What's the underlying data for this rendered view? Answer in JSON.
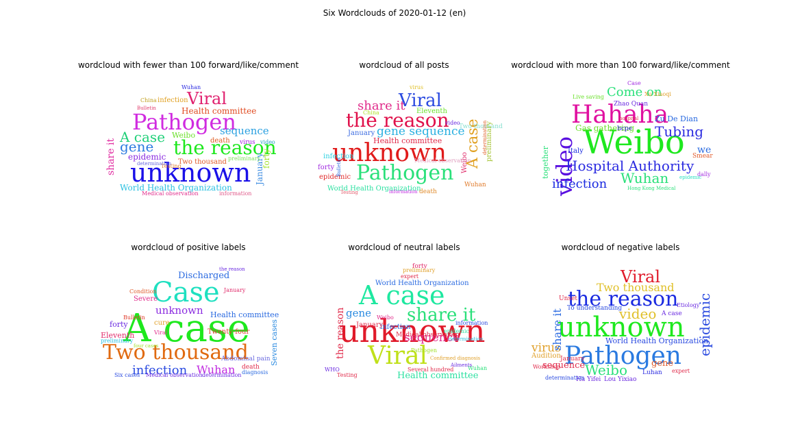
{
  "title": "Six Wordclouds of 2020-01-12 (en)",
  "chart_data": [
    {
      "type": "wordcloud",
      "title": "wordcloud with fewer than 100 forward/like/comment",
      "words": [
        {
          "text": "unknown",
          "color": "#1a10e8"
        },
        {
          "text": "Pathogen",
          "color": "#d02be0"
        },
        {
          "text": "the reason",
          "color": "#1ee81e"
        },
        {
          "text": "Viral",
          "color": "#e0206e"
        },
        {
          "text": "A case",
          "color": "#22d07a"
        },
        {
          "text": "gene",
          "color": "#2a7ae0"
        },
        {
          "text": "sequence",
          "color": "#2aa0e0"
        },
        {
          "text": "Health committee",
          "color": "#e04a20"
        },
        {
          "text": "epidemic",
          "color": "#8a2ae0"
        },
        {
          "text": "Weibo",
          "color": "#6ae02a"
        },
        {
          "text": "infection",
          "color": "#e0a020"
        },
        {
          "text": "Two thousand",
          "color": "#e05a2a"
        },
        {
          "text": "World Health Organization",
          "color": "#2ac0e0"
        },
        {
          "text": "share it",
          "color": "#e02aa0"
        },
        {
          "text": "January",
          "color": "#3a8ae0"
        },
        {
          "text": "forty",
          "color": "#a0e02a"
        },
        {
          "text": "death",
          "color": "#e05a20"
        },
        {
          "text": "Wuhan",
          "color": "#2a2ae0"
        },
        {
          "text": "China",
          "color": "#c0a020"
        },
        {
          "text": "Bulletin",
          "color": "#e03a6a"
        },
        {
          "text": "Testing",
          "color": "#e07a2a"
        },
        {
          "text": "Medical observation",
          "color": "#e02a8a"
        },
        {
          "text": "information",
          "color": "#e05a8a"
        },
        {
          "text": "preliminary",
          "color": "#7ae05a"
        },
        {
          "text": "virus",
          "color": "#a020e0"
        },
        {
          "text": "video",
          "color": "#20a0c0"
        },
        {
          "text": "determination",
          "color": "#6a6ae0"
        }
      ]
    },
    {
      "type": "wordcloud",
      "title": "wordcloud of all posts",
      "words": [
        {
          "text": "unknown",
          "color": "#e01a1a"
        },
        {
          "text": "the reason",
          "color": "#e0104a"
        },
        {
          "text": "Pathogen",
          "color": "#2ae07a"
        },
        {
          "text": "Viral",
          "color": "#2a4ae0"
        },
        {
          "text": "gene sequence",
          "color": "#2ab0e0"
        },
        {
          "text": "share it",
          "color": "#e02a8a"
        },
        {
          "text": "A case",
          "color": "#e0a020"
        },
        {
          "text": "Health committee",
          "color": "#e02a4a"
        },
        {
          "text": "World Health Organization",
          "color": "#2ae0a0"
        },
        {
          "text": "Eleventh",
          "color": "#6ae02a"
        },
        {
          "text": "January",
          "color": "#3a6ae0"
        },
        {
          "text": "infection",
          "color": "#2ad0e0"
        },
        {
          "text": "forty",
          "color": "#a02ae0"
        },
        {
          "text": "epidemic",
          "color": "#e02a2a"
        },
        {
          "text": "Weibo",
          "color": "#e02a6a"
        },
        {
          "text": "Wuhan",
          "color": "#e07a2a"
        },
        {
          "text": "death",
          "color": "#e08a2a"
        },
        {
          "text": "Two thousand",
          "color": "#8ae0d0"
        },
        {
          "text": "China",
          "color": "#b0e02a"
        },
        {
          "text": "video",
          "color": "#6a2ae0"
        },
        {
          "text": "virus",
          "color": "#e0c02a"
        },
        {
          "text": "Medical observation",
          "color": "#e0a0c0"
        },
        {
          "text": "preliminary",
          "color": "#a0c02a"
        },
        {
          "text": "Testing",
          "color": "#e05a6a"
        },
        {
          "text": "information",
          "color": "#c02ae0"
        },
        {
          "text": "Bulletin",
          "color": "#2a6ae0"
        },
        {
          "text": "determination",
          "color": "#e0602a"
        }
      ]
    },
    {
      "type": "wordcloud",
      "title": "wordcloud with more than 100 forward/like/comment",
      "words": [
        {
          "text": "Weibo",
          "color": "#1ee81e"
        },
        {
          "text": "Hahaha",
          "color": "#e010a0"
        },
        {
          "text": "video",
          "color": "#5a10e0"
        },
        {
          "text": "Hospital Authority",
          "color": "#2a2ae0"
        },
        {
          "text": "Come on",
          "color": "#2ae07a"
        },
        {
          "text": "Tubing",
          "color": "#2a2ae0"
        },
        {
          "text": "Wuhan",
          "color": "#2ae07a"
        },
        {
          "text": "infection",
          "color": "#1a2ae0"
        },
        {
          "text": "Gas gathering",
          "color": "#6ae02a"
        },
        {
          "text": "Zu De Dian",
          "color": "#2a6ae0"
        },
        {
          "text": "we",
          "color": "#2a6ae0"
        },
        {
          "text": "Italy",
          "color": "#1a2ae0"
        },
        {
          "text": "hcpe",
          "color": "#3a2ae0"
        },
        {
          "text": "Zhao Quan",
          "color": "#6a2ae0"
        },
        {
          "text": "together",
          "color": "#2ae07a"
        },
        {
          "text": "Smear",
          "color": "#e05a2a"
        },
        {
          "text": "Case",
          "color": "#a02ae0"
        },
        {
          "text": "Xu Xiaoqi",
          "color": "#e0a02a"
        },
        {
          "text": "hospital",
          "color": "#e02a4a"
        },
        {
          "text": "dally",
          "color": "#a02ae0"
        },
        {
          "text": "Live saving",
          "color": "#6ae02a"
        },
        {
          "text": "epidemic",
          "color": "#2ae0c0"
        },
        {
          "text": "Hong Kong Medical",
          "color": "#2ae07a"
        }
      ]
    },
    {
      "type": "wordcloud",
      "title": "wordcloud of positive labels",
      "words": [
        {
          "text": "A case",
          "color": "#1ee81e"
        },
        {
          "text": "Case",
          "color": "#1ee0c0"
        },
        {
          "text": "Two thousand",
          "color": "#e06a10"
        },
        {
          "text": "infection",
          "color": "#2a4ae0"
        },
        {
          "text": "Wuhan",
          "color": "#c02ae0"
        },
        {
          "text": "unknown",
          "color": "#8a2ae0"
        },
        {
          "text": "Discharged",
          "color": "#2a6ae0"
        },
        {
          "text": "Health committee",
          "color": "#2a6ae0"
        },
        {
          "text": "Twenty-four",
          "color": "#e03a2a"
        },
        {
          "text": "Seven cases",
          "color": "#2a8ae0"
        },
        {
          "text": "Eleventh",
          "color": "#e02a6a"
        },
        {
          "text": "Severe",
          "color": "#e02a8a"
        },
        {
          "text": "forty",
          "color": "#6a2ae0"
        },
        {
          "text": "cure",
          "color": "#e0a02a"
        },
        {
          "text": "Bulletin",
          "color": "#e03a2a"
        },
        {
          "text": "January",
          "color": "#e02a6a"
        },
        {
          "text": "the reason",
          "color": "#6a2ae0"
        },
        {
          "text": "Condition",
          "color": "#e05a2a"
        },
        {
          "text": "preliminary",
          "color": "#2ac0e0"
        },
        {
          "text": "death",
          "color": "#e02a4a"
        },
        {
          "text": "Abdominal pain",
          "color": "#6a6ae0"
        },
        {
          "text": "Medical observation",
          "color": "#6a2ae0"
        },
        {
          "text": "Six cases",
          "color": "#2a4ae0"
        },
        {
          "text": "determination",
          "color": "#6a2ae0"
        },
        {
          "text": "diagnosis",
          "color": "#2a6ae0"
        },
        {
          "text": "Viral",
          "color": "#e02a8a"
        },
        {
          "text": "four cases",
          "color": "#a0e02a"
        }
      ]
    },
    {
      "type": "wordcloud",
      "title": "wordcloud of neutral labels",
      "words": [
        {
          "text": "unknown",
          "color": "#e01a2a"
        },
        {
          "text": "A case",
          "color": "#1ee8a0"
        },
        {
          "text": "Viral",
          "color": "#c0e01a"
        },
        {
          "text": "share it",
          "color": "#2ae07a"
        },
        {
          "text": "sequence",
          "color": "#e02a8a"
        },
        {
          "text": "gene",
          "color": "#2a8ae0"
        },
        {
          "text": "the reason",
          "color": "#e02a4a"
        },
        {
          "text": "Health committee",
          "color": "#2ae0a0"
        },
        {
          "text": "World Health Organization",
          "color": "#2a6ae0"
        },
        {
          "text": "infection",
          "color": "#2a6ae0"
        },
        {
          "text": "January",
          "color": "#e02a4a"
        },
        {
          "text": "Pathogen",
          "color": "#a0e02a"
        },
        {
          "text": "forty",
          "color": "#e02a6a"
        },
        {
          "text": "epidemic",
          "color": "#2ae0a0"
        },
        {
          "text": "Medical observation",
          "color": "#e02a4a"
        },
        {
          "text": "Testing",
          "color": "#e02a4a"
        },
        {
          "text": "information",
          "color": "#2a4ae0"
        },
        {
          "text": "Wuhan",
          "color": "#2ae07a"
        },
        {
          "text": "Weibo",
          "color": "#e02a8a"
        },
        {
          "text": "expert",
          "color": "#e02a4a"
        },
        {
          "text": "preliminary",
          "color": "#e0a02a"
        },
        {
          "text": "determination",
          "color": "#2ac0e0"
        },
        {
          "text": "WHO",
          "color": "#6a2ae0"
        },
        {
          "text": "Several hundred",
          "color": "#e02a4a"
        },
        {
          "text": "Ailments",
          "color": "#6a2ae0"
        },
        {
          "text": "Confirmed diagnosis",
          "color": "#e0a02a"
        }
      ]
    },
    {
      "type": "wordcloud",
      "title": "wordcloud of negative labels",
      "words": [
        {
          "text": "unknown",
          "color": "#1ee81e"
        },
        {
          "text": "Pathogen",
          "color": "#2a7ae0"
        },
        {
          "text": "the reason",
          "color": "#1a2ae0"
        },
        {
          "text": "Viral",
          "color": "#e01a2a"
        },
        {
          "text": "Two thousand",
          "color": "#e0c02a"
        },
        {
          "text": "Weibo",
          "color": "#2ae07a"
        },
        {
          "text": "video",
          "color": "#e0c02a"
        },
        {
          "text": "epidemic",
          "color": "#2a4ae0"
        },
        {
          "text": "virus",
          "color": "#e0a02a"
        },
        {
          "text": "sequence",
          "color": "#e02a4a"
        },
        {
          "text": "gene",
          "color": "#e05a2a"
        },
        {
          "text": "World Health Organization",
          "color": "#2a4ae0"
        },
        {
          "text": "share it",
          "color": "#2a6ae0"
        },
        {
          "text": "Audition",
          "color": "#e0a02a"
        },
        {
          "text": "January",
          "color": "#e02a4a"
        },
        {
          "text": "A case",
          "color": "#6a2ae0"
        },
        {
          "text": "To understanding",
          "color": "#2a4ae0"
        },
        {
          "text": "Unset",
          "color": "#e02a4a"
        },
        {
          "text": "Luhan",
          "color": "#2a2ae0"
        },
        {
          "text": "expert",
          "color": "#e02a4a"
        },
        {
          "text": "Etiology",
          "color": "#6a2ae0"
        },
        {
          "text": "Ha Yifei",
          "color": "#6a2ae0"
        },
        {
          "text": "Lou Yixiao",
          "color": "#6a2ae0"
        },
        {
          "text": "determination",
          "color": "#2a4ae0"
        },
        {
          "text": "Workshop",
          "color": "#e02a4a"
        }
      ]
    }
  ]
}
